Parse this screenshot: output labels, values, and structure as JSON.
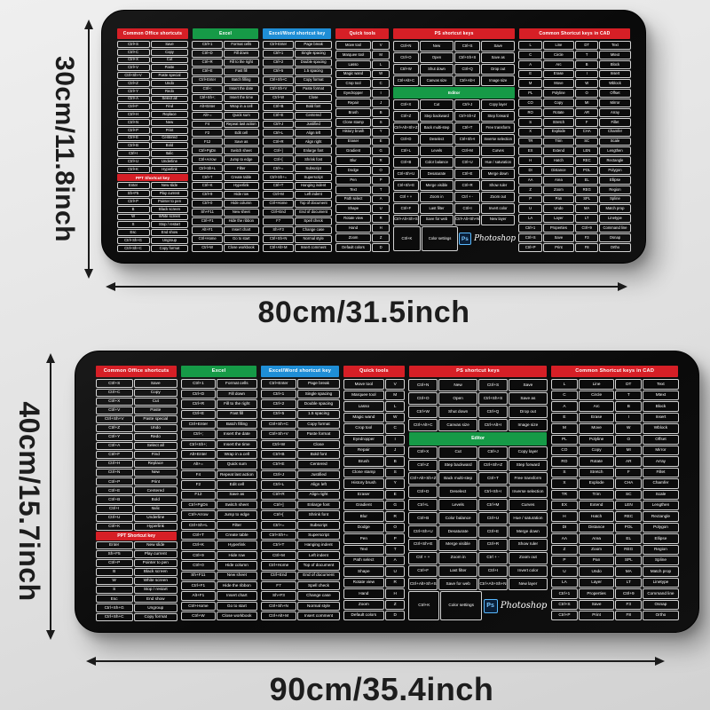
{
  "dimensions": {
    "top_mat": {
      "height_label": "30cm/11.8inch",
      "width_label": "80cm/31.5inch"
    },
    "bottom_mat": {
      "height_label": "40cm/15.7inch",
      "width_label": "90cm/35.4inch"
    }
  },
  "mat": {
    "brand": {
      "badge": "Ps",
      "name": "Photoshop"
    },
    "colors": {
      "red": "#d61f26",
      "green": "#169a47",
      "blue": "#1f8ed6",
      "surface": "#0b0b0b",
      "text": "#ffffff"
    },
    "groups": [
      {
        "name": "office",
        "header": "Common Office shortcuts",
        "color": "red",
        "type": "pair",
        "width": 14.5,
        "rows": [
          [
            "Ctrl+S",
            "Save"
          ],
          [
            "Ctrl+C",
            "Copy"
          ],
          [
            "Ctrl+X",
            "Cut"
          ],
          [
            "Ctrl+V",
            "Paste"
          ],
          [
            "Ctrl+Sh+V",
            "Paste special"
          ],
          [
            "Ctrl+Z",
            "Undo"
          ],
          [
            "Ctrl+Y",
            "Redo"
          ],
          [
            "Ctrl+A",
            "Select all"
          ],
          [
            "Ctrl+F",
            "Find"
          ],
          [
            "Ctrl+H",
            "Replace"
          ],
          [
            "Ctrl+N",
            "New"
          ],
          [
            "Ctrl+P",
            "Print"
          ],
          [
            "Ctrl+E",
            "Centered"
          ],
          [
            "Ctrl+B",
            "Bold"
          ],
          [
            "Ctrl+I",
            "Italic"
          ],
          [
            "Ctrl+U",
            "Underline"
          ],
          [
            "Ctrl+K",
            "Hyperlink"
          ],
          {
            "header": "PPT Shortcut key",
            "color": "red"
          },
          [
            "Enter",
            "New slide"
          ],
          [
            "Sh+F5",
            "Play current"
          ],
          [
            "Ctrl+P",
            "Pointer to pen"
          ],
          [
            "B",
            "Black screen"
          ],
          [
            "W",
            "White screen"
          ],
          [
            "S",
            "Stop / restart"
          ],
          [
            "Esc",
            "End show"
          ],
          [
            "Ctrl+Sh+G",
            "Ungroup"
          ],
          [
            "Ctrl+Sh+C",
            "Copy format"
          ]
        ]
      },
      {
        "name": "excel",
        "header": "Excel",
        "color": "green",
        "type": "pair",
        "width": 13.5,
        "rows": [
          [
            "Ctrl+1",
            "Format cells"
          ],
          [
            "Ctrl+D",
            "Fill down"
          ],
          [
            "Ctrl+R",
            "Fill to the right"
          ],
          [
            "Ctrl+E",
            "Fast fill"
          ],
          [
            "Ctrl+Enter",
            "Batch filling"
          ],
          [
            "Ctrl+;",
            "Insert the date"
          ],
          [
            "Ctrl+Sh+;",
            "Insert the time"
          ],
          [
            "Alt+Enter",
            "Wrap in a cell"
          ],
          [
            "Alt+=",
            "Quick sum"
          ],
          [
            "F4",
            "Repeat last action"
          ],
          [
            "F2",
            "Edit cell"
          ],
          [
            "F12",
            "Save as"
          ],
          [
            "Ctrl+PgDn",
            "Switch sheet"
          ],
          [
            "Ctrl+Arrow",
            "Jump to edge"
          ],
          [
            "Ctrl+Sh+L",
            "Filter"
          ],
          [
            "Ctrl+T",
            "Create table"
          ],
          [
            "Ctrl+K",
            "Hyperlink"
          ],
          [
            "Ctrl+9",
            "Hide row"
          ],
          [
            "Ctrl+0",
            "Hide column"
          ],
          [
            "Sh+F11",
            "New sheet"
          ],
          [
            "Ctrl+F1",
            "Hide the ribbon"
          ],
          [
            "Alt+F1",
            "Insert chart"
          ],
          [
            "Ctrl+Home",
            "Go to start"
          ],
          [
            "Ctrl+W",
            "Close workbook"
          ]
        ]
      },
      {
        "name": "word",
        "header": "Excel/Word shortcut key",
        "color": "blue",
        "type": "pair",
        "width": 14,
        "rows": [
          [
            "Ctrl+Enter",
            "Page break"
          ],
          [
            "Ctrl+1",
            "Single spacing"
          ],
          [
            "Ctrl+2",
            "Double spacing"
          ],
          [
            "Ctrl+5",
            "1.5 spacing"
          ],
          [
            "Ctrl+Sh+C",
            "Copy format"
          ],
          [
            "Ctrl+Sh+V",
            "Paste format"
          ],
          [
            "Ctrl+W",
            "Close"
          ],
          [
            "Ctrl+B",
            "Bold font"
          ],
          [
            "Ctrl+E",
            "Centered"
          ],
          [
            "Ctrl+J",
            "Justified"
          ],
          [
            "Ctrl+L",
            "Align left"
          ],
          [
            "Ctrl+R",
            "Align right"
          ],
          [
            "Ctrl+]",
            "Enlarge font"
          ],
          [
            "Ctrl+[",
            "Shrink font"
          ],
          [
            "Ctrl+=",
            "Subscript"
          ],
          [
            "Ctrl+Sh+=",
            "Superscript"
          ],
          [
            "Ctrl+T",
            "Hanging indent"
          ],
          [
            "Ctrl+M",
            "Left indent"
          ],
          [
            "Ctrl+Home",
            "Top of document"
          ],
          [
            "Ctrl+End",
            "End of document"
          ],
          [
            "F7",
            "Spell check"
          ],
          [
            "Sh+F3",
            "Change case"
          ],
          [
            "Ctrl+Sh+N",
            "Normal style"
          ],
          [
            "Ctrl+Alt+M",
            "Insert comment"
          ]
        ]
      },
      {
        "name": "tools",
        "header": "Quick tools",
        "color": "red",
        "type": "pairrev",
        "width": 11,
        "rows": [
          [
            "Move tool",
            "V"
          ],
          [
            "Marquee tool",
            "M"
          ],
          [
            "Lasso",
            "L"
          ],
          [
            "Magic wand",
            "W"
          ],
          [
            "Crop tool",
            "C"
          ],
          [
            "Eyedropper",
            "I"
          ],
          [
            "Repair",
            "J"
          ],
          [
            "Brush",
            "B"
          ],
          [
            "Clone stamp",
            "S"
          ],
          [
            "History brush",
            "Y"
          ],
          [
            "Eraser",
            "E"
          ],
          [
            "Gradient",
            "G"
          ],
          [
            "Blur",
            "R"
          ],
          [
            "Dodge",
            "O"
          ],
          [
            "Pen",
            "P"
          ],
          [
            "Text",
            "T"
          ],
          [
            "Path select",
            "A"
          ],
          [
            "Shape",
            "U"
          ],
          [
            "Rotate view",
            "R"
          ],
          [
            "Hand",
            "H"
          ],
          [
            "Zoom",
            "Z"
          ],
          [
            "Default colors",
            "D"
          ]
        ]
      },
      {
        "name": "ps",
        "header": "PS shortcut keys",
        "color": "red",
        "type": "quad",
        "width": 24.5,
        "rows": [
          [
            "Ctrl+N",
            "New",
            "Ctrl+S",
            "Save"
          ],
          [
            "Ctrl+O",
            "Open",
            "Ctrl+Sh+S",
            "Save as"
          ],
          [
            "Ctrl+W",
            "Shut down",
            "Ctrl+Q",
            "Drop out"
          ],
          [
            "Ctrl+Alt+C",
            "Canvas size",
            "Ctrl+Alt+I",
            "Image size"
          ],
          {
            "header": "Editor",
            "color": "green"
          },
          [
            "Ctrl+X",
            "Cut",
            "Ctrl+J",
            "Copy layer"
          ],
          [
            "Ctrl+Z",
            "Step backward",
            "Ctrl+Sh+Z",
            "Step forward"
          ],
          [
            "Ctrl+Alt+Sh+Z",
            "Back multi-step",
            "Ctrl+T",
            "Free transform"
          ],
          [
            "Ctrl+D",
            "Deselect",
            "Ctrl+Sh+I",
            "Inverse selection"
          ],
          [
            "Ctrl+L",
            "Levels",
            "Ctrl+M",
            "Curves"
          ],
          [
            "Ctrl+B",
            "Color balance",
            "Ctrl+U",
            "Hue / saturation"
          ],
          [
            "Ctrl+Sh+U",
            "Desaturate",
            "Ctrl+E",
            "Merge down"
          ],
          [
            "Ctrl+Sh+E",
            "Merge visible",
            "Ctrl+R",
            "Show ruler"
          ],
          [
            "Ctrl + +",
            "Zoom in",
            "Ctrl + -",
            "Zoom out"
          ],
          [
            "Ctrl+F",
            "Last filter",
            "Ctrl+I",
            "Invert color"
          ],
          [
            "Ctrl+Alt+Sh+S",
            "Save for web",
            "Ctrl+Alt+Sh+N",
            "New layer"
          ],
          {
            "brand": true,
            "cells": [
              "Ctrl+K",
              "Color settings"
            ]
          }
        ]
      },
      {
        "name": "cad",
        "header": "Common Shortcut keys in CAD",
        "color": "red",
        "type": "quad",
        "width": 22.5,
        "rows": [
          [
            "L",
            "Line",
            "DT",
            "Text"
          ],
          [
            "C",
            "Circle",
            "T",
            "Mtext"
          ],
          [
            "A",
            "Arc",
            "B",
            "Block"
          ],
          [
            "E",
            "Erase",
            "I",
            "Insert"
          ],
          [
            "M",
            "Move",
            "W",
            "Wblock"
          ],
          [
            "PL",
            "Polyline",
            "O",
            "Offset"
          ],
          [
            "CO",
            "Copy",
            "MI",
            "Mirror"
          ],
          [
            "RO",
            "Rotate",
            "AR",
            "Array"
          ],
          [
            "S",
            "Stretch",
            "F",
            "Fillet"
          ],
          [
            "X",
            "Explode",
            "CHA",
            "Chamfer"
          ],
          [
            "TR",
            "Trim",
            "SC",
            "Scale"
          ],
          [
            "EX",
            "Extend",
            "LEN",
            "Lengthen"
          ],
          [
            "H",
            "Hatch",
            "REC",
            "Rectangle"
          ],
          [
            "DI",
            "Distance",
            "POL",
            "Polygon"
          ],
          [
            "AA",
            "Area",
            "EL",
            "Ellipse"
          ],
          [
            "Z",
            "Zoom",
            "REG",
            "Region"
          ],
          [
            "P",
            "Pan",
            "SPL",
            "Spline"
          ],
          [
            "U",
            "Undo",
            "MA",
            "Match prop"
          ],
          [
            "LA",
            "Layer",
            "LT",
            "Linetype"
          ],
          [
            "Ctrl+1",
            "Properties",
            "Ctrl+9",
            "Command line"
          ],
          [
            "Ctrl+S",
            "Save",
            "F3",
            "Osnap"
          ],
          [
            "Ctrl+P",
            "Print",
            "F8",
            "Ortho"
          ]
        ]
      }
    ]
  }
}
